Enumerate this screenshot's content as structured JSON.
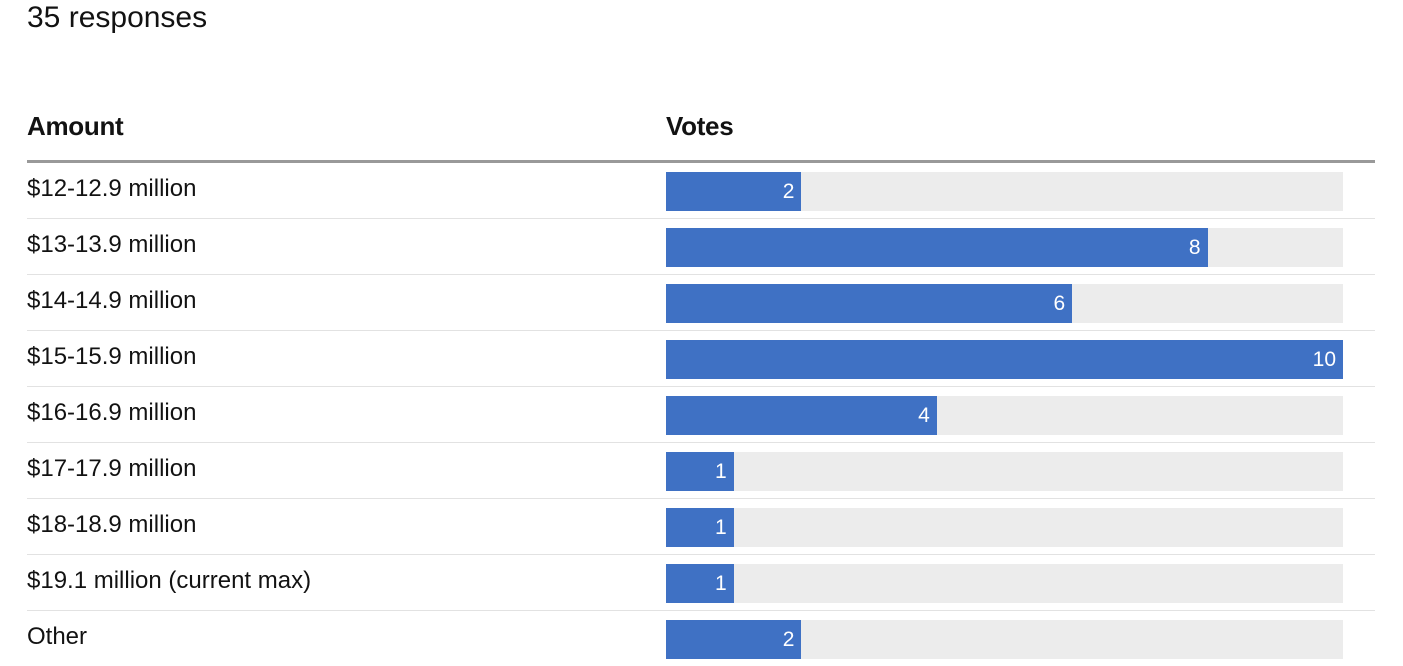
{
  "header": {
    "subtitle": "35 responses"
  },
  "table": {
    "col_amount": "Amount",
    "col_votes": "Votes"
  },
  "colors": {
    "bar": "#3f71c4",
    "track": "#ececec"
  },
  "chart_data": {
    "type": "bar",
    "orientation": "horizontal",
    "title": "",
    "subtitle": "35 responses",
    "xlabel": "Votes",
    "ylabel": "Amount",
    "xlim": [
      0,
      10
    ],
    "categories": [
      "$12-12.9 million",
      "$13-13.9 million",
      "$14-14.9 million",
      "$15-15.9 million",
      "$16-16.9 million",
      "$17-17.9 million",
      "$18-18.9 million",
      "$19.1 million (current max)",
      "Other"
    ],
    "values": [
      2,
      8,
      6,
      10,
      4,
      1,
      1,
      1,
      2
    ],
    "legend": "none",
    "grid": false
  }
}
